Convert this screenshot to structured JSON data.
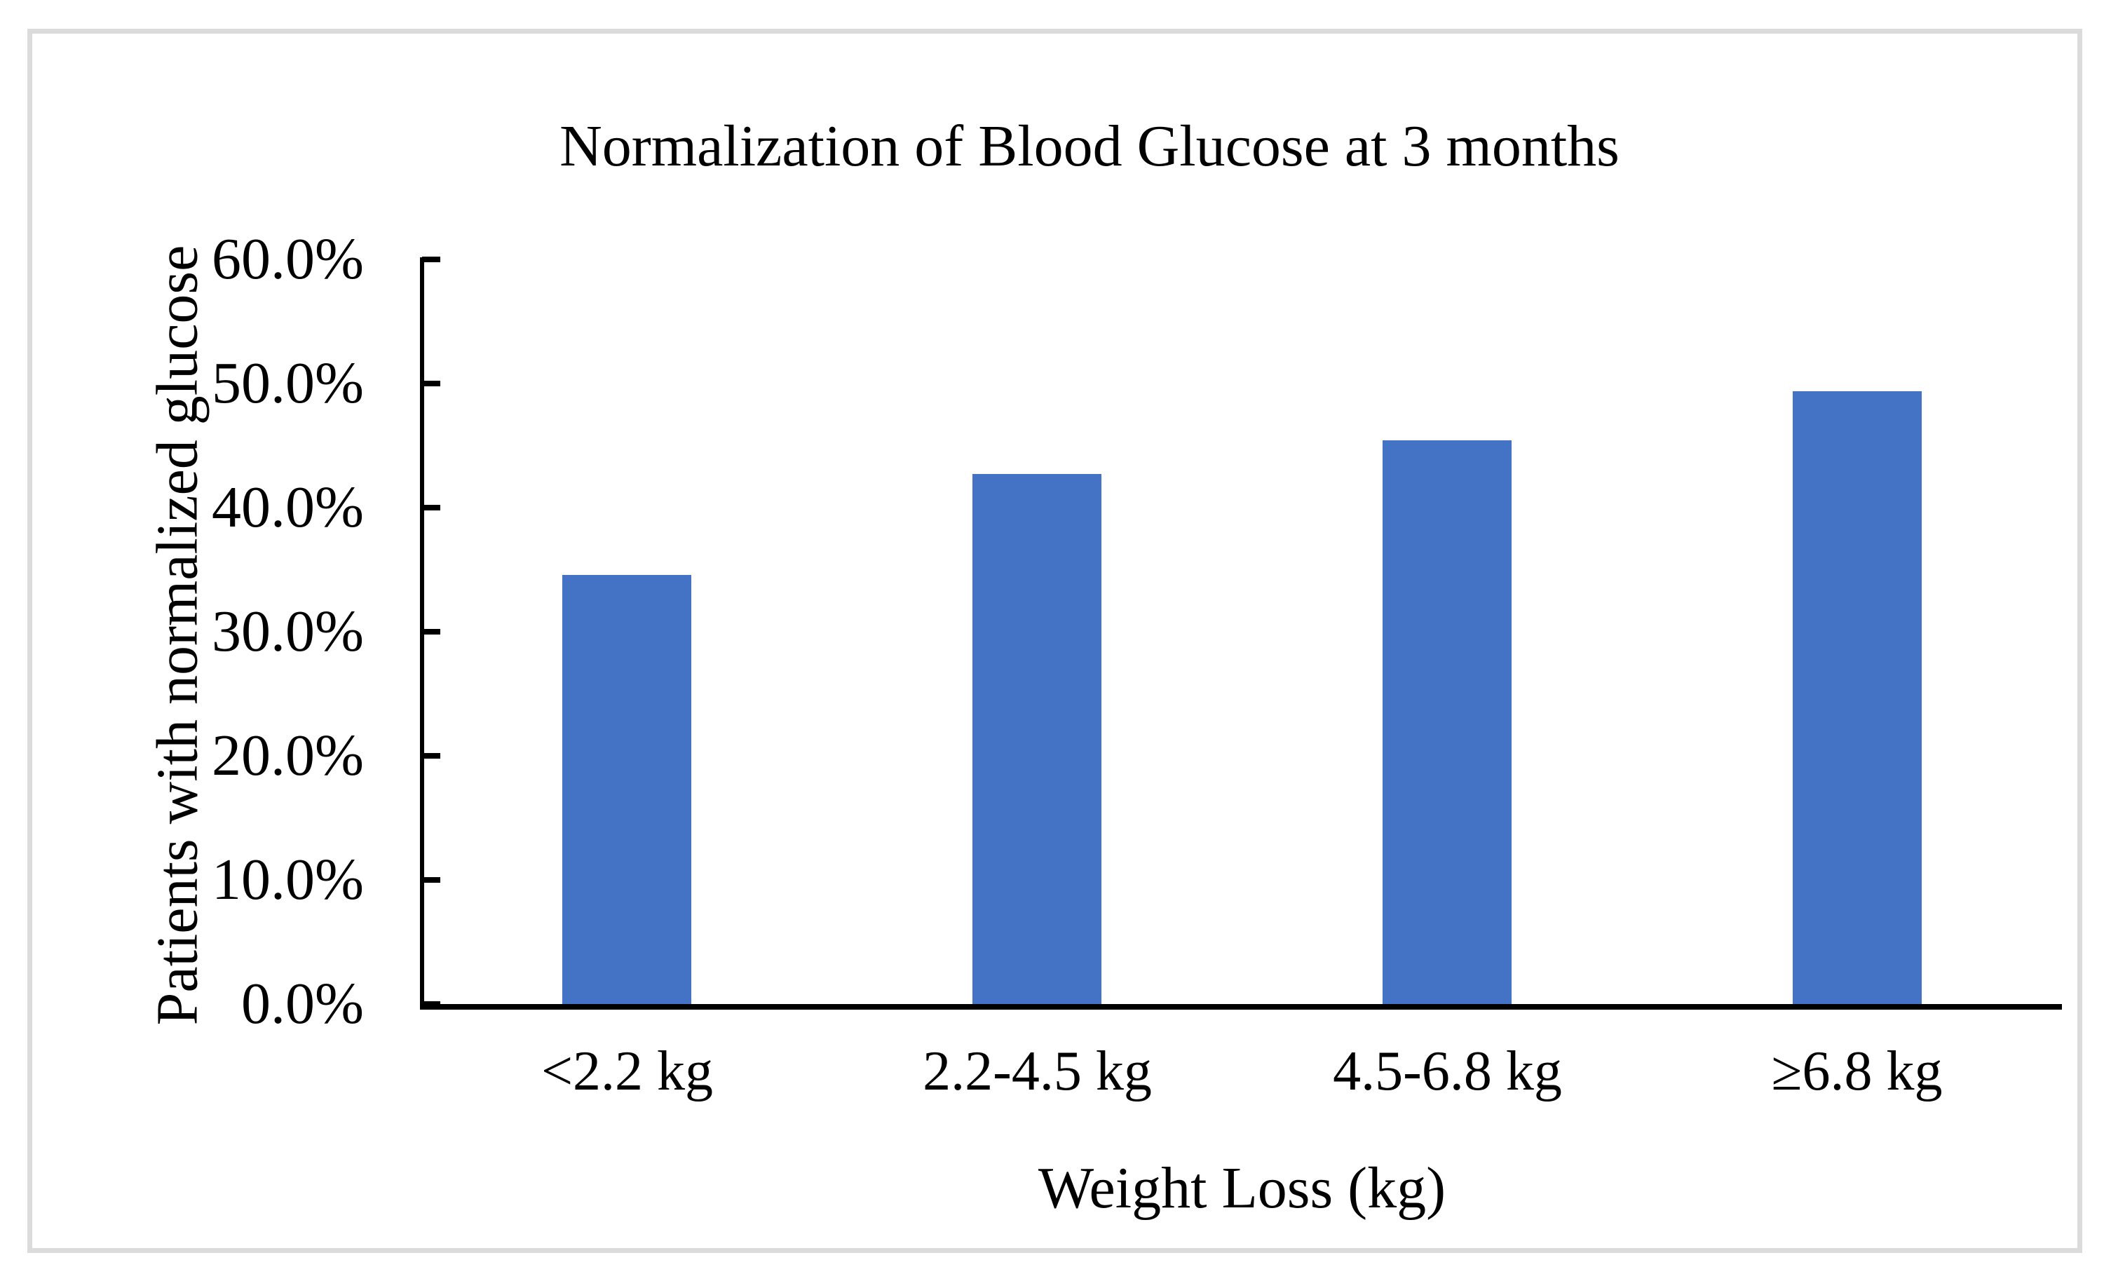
{
  "figure": {
    "background": "#FFFFFF",
    "border_color": "#DBDBDB"
  },
  "chart_data": {
    "type": "bar",
    "title": "Normalization of Blood Glucose at 3 months",
    "xlabel": "Weight Loss (kg)",
    "ylabel": "Patients with normalized glucose",
    "categories": [
      "<2.2 kg",
      "2.2-4.5 kg",
      "4.5-6.8 kg",
      "≥6.8 kg"
    ],
    "values": [
      34.6,
      42.7,
      45.4,
      49.4
    ],
    "unit": "%",
    "ylim": [
      0,
      60
    ],
    "ytick_step": 10,
    "ytick_labels": [
      "0.0%",
      "10.0%",
      "20.0%",
      "30.0%",
      "40.0%",
      "50.0%",
      "60.0%"
    ],
    "bar_color": "#4472C4",
    "axis_color": "#000000",
    "grid": false,
    "legend": false,
    "tick_direction": "inside"
  }
}
